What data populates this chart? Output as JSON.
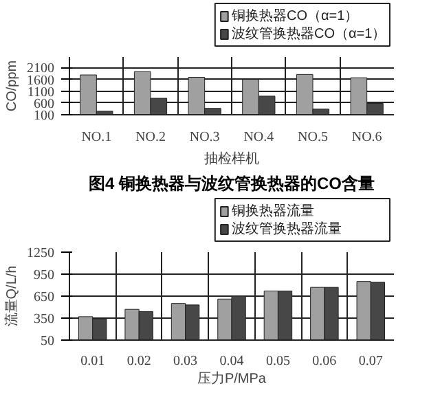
{
  "chart_data": [
    {
      "type": "bar",
      "categories": [
        "NO.1",
        "NO.2",
        "NO.3",
        "NO.4",
        "NO.5",
        "NO.6"
      ],
      "xlabel": "抽检样机",
      "ylabel": "CO/ppm",
      "ylim": [
        100,
        2550
      ],
      "yticks": [
        100,
        600,
        1100,
        1600,
        2100
      ],
      "grid": true,
      "legend": "top right",
      "series": [
        {
          "name": "铜换热器CO（α=1）",
          "color": "#a0a0a0",
          "values": [
            1790,
            1930,
            1690,
            1600,
            1810,
            1670
          ]
        },
        {
          "name": "波纹管换热器CO（α=1）",
          "color": "#474747",
          "values": [
            250,
            800,
            370,
            890,
            340,
            580
          ]
        }
      ],
      "annotations": [
        "图4 铜换热器与波纹管换热器的CO含量"
      ]
    },
    {
      "type": "bar",
      "categories": [
        "0.01",
        "0.02",
        "0.03",
        "0.04",
        "0.05",
        "0.06",
        "0.07"
      ],
      "xlabel": "压力P/MPa",
      "ylabel": "流量Q/L/h",
      "ylim": [
        50,
        1250
      ],
      "yticks": [
        50,
        350,
        650,
        950,
        1250
      ],
      "grid": true,
      "legend": "top right",
      "series": [
        {
          "name": "铜换热器流量",
          "color": "#a0a0a0",
          "values": [
            370,
            470,
            550,
            610,
            720,
            770,
            850
          ]
        },
        {
          "name": "波纹管换热器流量",
          "color": "#474747",
          "values": [
            340,
            440,
            530,
            650,
            720,
            770,
            840
          ]
        }
      ]
    }
  ]
}
